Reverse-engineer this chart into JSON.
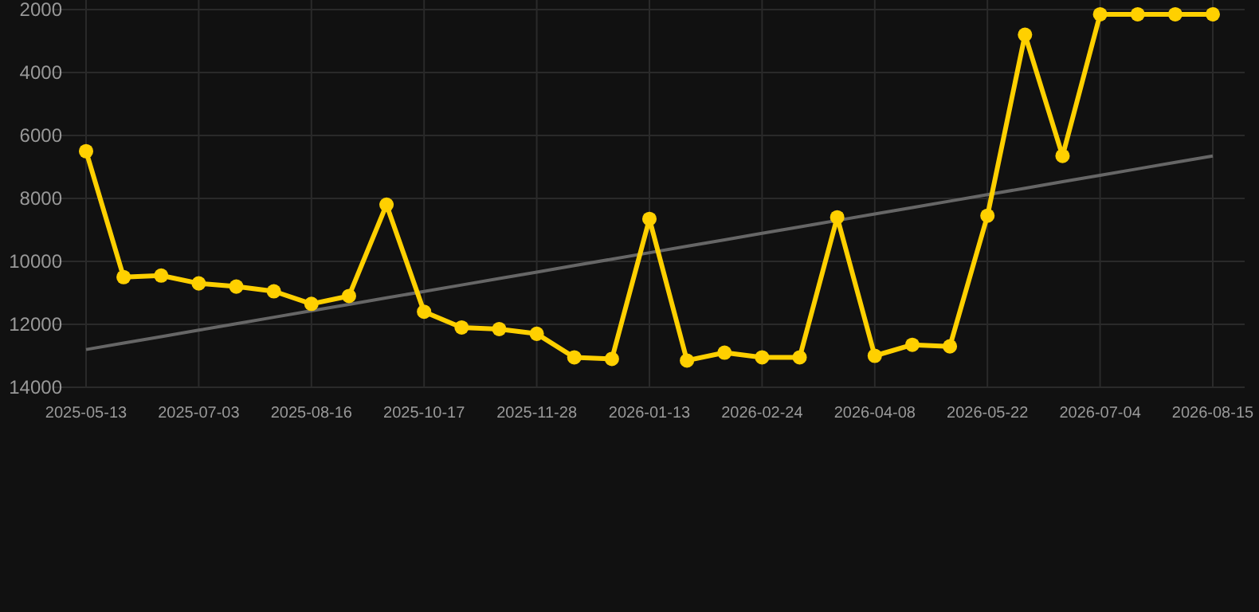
{
  "chart_data": {
    "type": "line",
    "categories": [
      "2025-05-13",
      null,
      null,
      "2025-07-03",
      null,
      null,
      "2025-08-16",
      null,
      null,
      "2025-10-17",
      null,
      null,
      "2025-11-28",
      null,
      null,
      "2026-01-13",
      null,
      null,
      "2026-02-24",
      null,
      null,
      "2026-04-08",
      null,
      null,
      "2026-05-22",
      null,
      null,
      "2026-07-04",
      null,
      null,
      "2026-08-15"
    ],
    "series": [
      {
        "color": "#ffd000",
        "marker": "circle",
        "values": [
          6500,
          10500,
          10450,
          10700,
          10800,
          10950,
          11350,
          11100,
          8200,
          11600,
          12100,
          12150,
          12300,
          13050,
          13100,
          8650,
          13150,
          12900,
          13050,
          13050,
          8600,
          13000,
          12650,
          12700,
          8550,
          2800,
          6650,
          2150,
          2150,
          2150,
          2150
        ]
      },
      {
        "color": "#666666",
        "marker": "none",
        "values": [
          12800,
          12595,
          12390,
          12185,
          11980,
          11775,
          11570,
          11365,
          11160,
          10955,
          10750,
          10545,
          10340,
          10135,
          9930,
          9725,
          9520,
          9315,
          9110,
          8905,
          8700,
          8495,
          8290,
          8085,
          7880,
          7675,
          7470,
          7265,
          7060,
          6855,
          6650
        ]
      }
    ],
    "ylim": [
      14000,
      2000
    ],
    "yticks": [
      2000,
      4000,
      6000,
      8000,
      10000,
      12000,
      14000
    ],
    "grid": true
  }
}
